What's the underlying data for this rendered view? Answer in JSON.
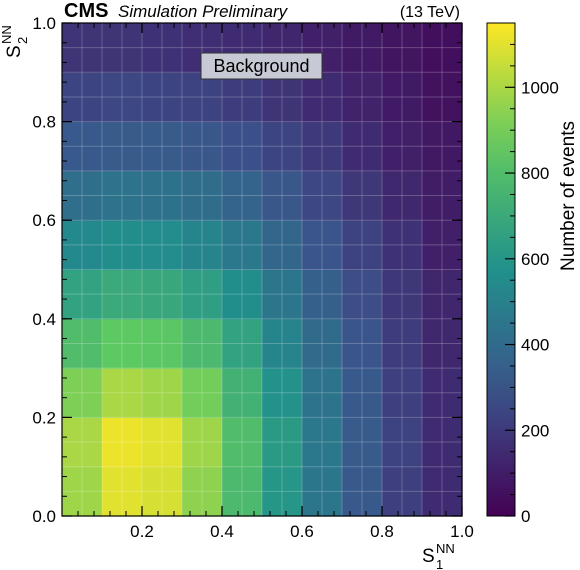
{
  "header": {
    "experiment": "CMS",
    "status": "Simulation Preliminary",
    "energy": "(13 TeV)"
  },
  "chart_data": {
    "type": "heatmap",
    "annotation": "Background",
    "xlabel": {
      "base": "S",
      "sub": "1",
      "sup": "NN"
    },
    "ylabel": {
      "base": "S",
      "sub": "2",
      "sup": "NN"
    },
    "colorbar_label": "Number of events",
    "xlim": [
      0,
      1
    ],
    "ylim": [
      0,
      1
    ],
    "zlim": [
      0,
      1150
    ],
    "colormap": [
      "#440154",
      "#3b528b",
      "#21918c",
      "#5ec962",
      "#fde725"
    ],
    "x_ticks": [
      "0.2",
      "0.4",
      "0.6",
      "0.8",
      "1.0"
    ],
    "y_ticks": [
      "0.0",
      "0.2",
      "0.4",
      "0.6",
      "0.8",
      "1.0"
    ],
    "z_ticks": [
      "0",
      "200",
      "400",
      "600",
      "800",
      "1000"
    ],
    "grid": true,
    "x_centers": [
      0.05,
      0.15,
      0.25,
      0.35,
      0.45,
      0.55,
      0.65,
      0.75,
      0.85,
      0.95
    ],
    "y_centers": [
      0.05,
      0.15,
      0.25,
      0.35,
      0.45,
      0.55,
      0.65,
      0.75,
      0.85,
      0.95
    ],
    "values": [
      [
        980,
        1100,
        1080,
        950,
        780,
        600,
        450,
        320,
        220,
        150
      ],
      [
        1000,
        1120,
        1100,
        980,
        800,
        620,
        460,
        330,
        230,
        150
      ],
      [
        920,
        1000,
        980,
        900,
        740,
        580,
        440,
        320,
        220,
        150
      ],
      [
        800,
        860,
        850,
        780,
        660,
        520,
        400,
        300,
        210,
        140
      ],
      [
        660,
        700,
        690,
        640,
        560,
        450,
        350,
        270,
        190,
        130
      ],
      [
        540,
        560,
        550,
        520,
        460,
        380,
        300,
        230,
        170,
        110
      ],
      [
        420,
        440,
        430,
        410,
        370,
        310,
        250,
        190,
        140,
        100
      ],
      [
        320,
        330,
        330,
        310,
        280,
        240,
        200,
        150,
        110,
        80
      ],
      [
        240,
        250,
        240,
        230,
        210,
        180,
        150,
        120,
        90,
        60
      ],
      [
        180,
        180,
        170,
        160,
        150,
        130,
        110,
        90,
        70,
        50
      ]
    ]
  }
}
